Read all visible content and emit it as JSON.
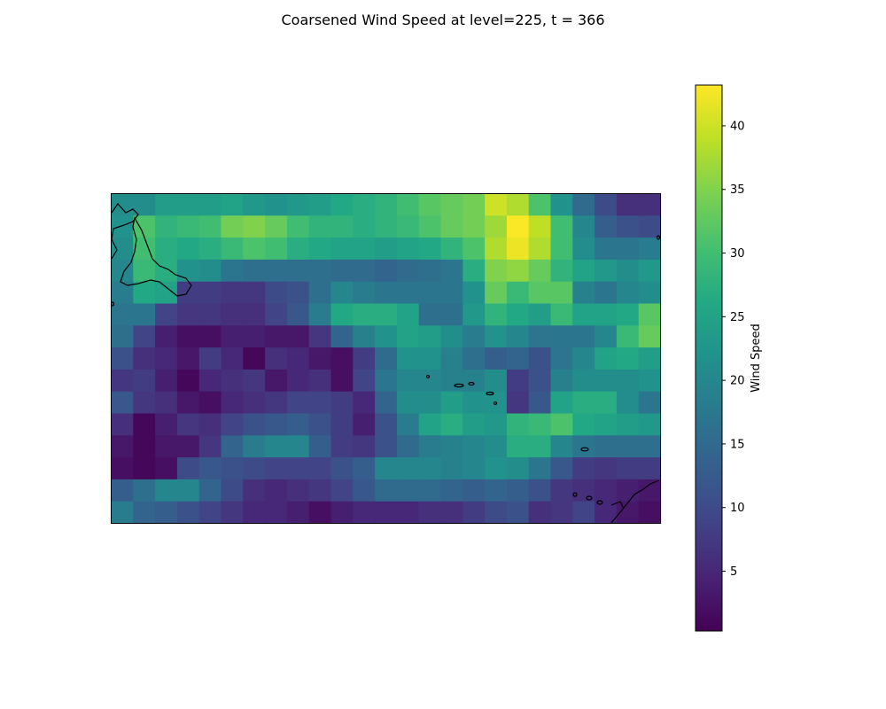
{
  "chart_data": {
    "type": "heatmap",
    "title": "Coarsened Wind Speed at level=225, t = 366",
    "colorbar": {
      "label": "Wind Speed",
      "range": [
        0.3,
        43.2
      ],
      "ticks": [
        5,
        10,
        15,
        20,
        25,
        30,
        35,
        40
      ],
      "colormap": "viridis"
    },
    "grid": {
      "rows": 15,
      "cols": 25
    },
    "values": [
      [
        21,
        21,
        24,
        24,
        24,
        25,
        23,
        22,
        23,
        24,
        26,
        27,
        28,
        30,
        32,
        33,
        34,
        40,
        38,
        31,
        22,
        15,
        10,
        6,
        6
      ],
      [
        22,
        31,
        28,
        29,
        30,
        34,
        35,
        33,
        30,
        28,
        28,
        27,
        28,
        29,
        31,
        33,
        34,
        37,
        43,
        39,
        30,
        20,
        13,
        11,
        10
      ],
      [
        21,
        30,
        27,
        26,
        27,
        29,
        31,
        30,
        27,
        26,
        25,
        25,
        24,
        25,
        26,
        28,
        31,
        38,
        42,
        38,
        30,
        21,
        17,
        17,
        18
      ],
      [
        20,
        29,
        27,
        22,
        21,
        17,
        16,
        16,
        16,
        16,
        15,
        15,
        14,
        15,
        16,
        17,
        27,
        35,
        36,
        33,
        28,
        25,
        23,
        21,
        23
      ],
      [
        18,
        26,
        25,
        8,
        8,
        7,
        7,
        10,
        11,
        16,
        20,
        18,
        17,
        17,
        17,
        17,
        22,
        33,
        29,
        32,
        32,
        19,
        17,
        20,
        21
      ],
      [
        17,
        17,
        9,
        7,
        7,
        6,
        6,
        9,
        12,
        18,
        26,
        27,
        27,
        25,
        16,
        16,
        23,
        28,
        26,
        24,
        29,
        25,
        25,
        26,
        32
      ],
      [
        16,
        9,
        4,
        2,
        2,
        4,
        4,
        3,
        3,
        7,
        14,
        19,
        22,
        25,
        24,
        21,
        18,
        22,
        20,
        17,
        17,
        17,
        20,
        29,
        33
      ],
      [
        11,
        6,
        5,
        3,
        8,
        5,
        1,
        6,
        5,
        3,
        2,
        8,
        15,
        22,
        22,
        19,
        16,
        13,
        14,
        11,
        17,
        20,
        25,
        26,
        24
      ],
      [
        7,
        8,
        4,
        1,
        5,
        6,
        7,
        3,
        5,
        6,
        2,
        9,
        17,
        20,
        20,
        19,
        19,
        21,
        8,
        11,
        19,
        21,
        21,
        21,
        22
      ],
      [
        12,
        7,
        6,
        3,
        2,
        5,
        6,
        7,
        9,
        9,
        8,
        5,
        14,
        21,
        21,
        24,
        22,
        22,
        7,
        12,
        25,
        27,
        27,
        21,
        17
      ],
      [
        6,
        1,
        4,
        7,
        6,
        9,
        11,
        12,
        13,
        11,
        8,
        4,
        11,
        18,
        25,
        27,
        24,
        23,
        28,
        29,
        31,
        26,
        25,
        24,
        23
      ],
      [
        3,
        1,
        3,
        3,
        7,
        14,
        18,
        20,
        20,
        13,
        8,
        7,
        11,
        15,
        18,
        19,
        20,
        21,
        27,
        27,
        20,
        17,
        16,
        16,
        16
      ],
      [
        2,
        1,
        2,
        10,
        12,
        11,
        10,
        9,
        9,
        9,
        11,
        13,
        20,
        20,
        20,
        19,
        20,
        22,
        21,
        17,
        12,
        8,
        7,
        8,
        8
      ],
      [
        13,
        16,
        20,
        20,
        14,
        10,
        6,
        5,
        6,
        7,
        9,
        12,
        15,
        15,
        15,
        14,
        13,
        14,
        13,
        11,
        7,
        6,
        5,
        4,
        3
      ],
      [
        18,
        14,
        13,
        11,
        9,
        7,
        5,
        5,
        4,
        2,
        4,
        5,
        5,
        5,
        6,
        6,
        8,
        10,
        11,
        6,
        7,
        9,
        5,
        3,
        2
      ]
    ]
  }
}
